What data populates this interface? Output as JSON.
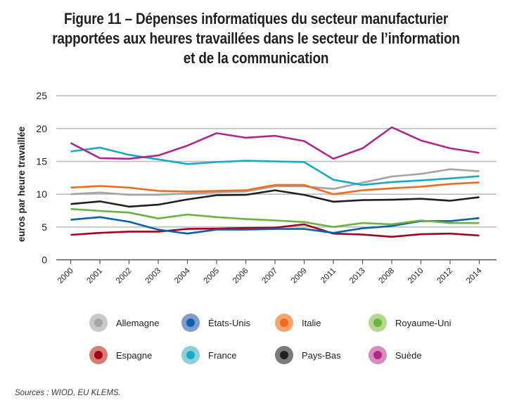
{
  "title_lines": [
    "Figure 11 – Dépenses informatiques du secteur manufacturier",
    "rapportées aux heures travaillées dans le secteur de l’information",
    "et de la communication"
  ],
  "source": "Sources : WIOD, EU KLEMS.",
  "chart_data": {
    "type": "line",
    "title": "Figure 11 – Dépenses informatiques du secteur manufacturier rapportées aux heures travaillées dans le secteur de l’information et de la communication",
    "xlabel": "",
    "ylabel": "euros par heure travaillée",
    "ylim": [
      0,
      25
    ],
    "yticks": [
      0,
      5,
      10,
      15,
      20,
      25
    ],
    "grid": true,
    "legend_position": "bottom",
    "categories": [
      "2000",
      "2001",
      "2002",
      "2003",
      "2004",
      "2005",
      "2006",
      "2007",
      "2009",
      "2011",
      "2013",
      "2008",
      "2010",
      "2012",
      "2014"
    ],
    "series": [
      {
        "name": "Allemagne",
        "color": "#a5a5a5",
        "light": "#c9cac8",
        "values": [
          10.0,
          10.25,
          9.9,
          9.9,
          10.1,
          10.3,
          10.4,
          11.2,
          11.2,
          10.8,
          11.75,
          12.7,
          13.1,
          13.8,
          13.5
        ]
      },
      {
        "name": "États-Unis",
        "color": "#0a62ad",
        "light": "#7f9ccb",
        "values": [
          6.1,
          6.5,
          5.8,
          4.6,
          4.0,
          4.6,
          4.6,
          4.7,
          4.7,
          4.1,
          4.8,
          5.15,
          5.9,
          5.9,
          6.35
        ]
      },
      {
        "name": "Italie",
        "color": "#f36a1d",
        "light": "#f9a46f",
        "values": [
          11.0,
          11.25,
          11.0,
          10.5,
          10.4,
          10.5,
          10.6,
          11.4,
          11.4,
          10.0,
          10.6,
          10.9,
          11.15,
          11.55,
          11.8
        ]
      },
      {
        "name": "Royaume-Uni",
        "color": "#6db33f",
        "light": "#b6d78f",
        "values": [
          7.75,
          7.45,
          7.2,
          6.3,
          6.9,
          6.5,
          6.2,
          6.0,
          5.75,
          5.0,
          5.6,
          5.4,
          6.0,
          5.6,
          5.6
        ]
      },
      {
        "name": "Espagne",
        "color": "#a6001f",
        "light": "#d27e70",
        "values": [
          3.8,
          4.1,
          4.3,
          4.3,
          4.7,
          4.75,
          4.85,
          4.9,
          5.4,
          4.0,
          3.85,
          3.5,
          3.9,
          4.0,
          3.7
        ]
      },
      {
        "name": "France",
        "color": "#12adc2",
        "light": "#8ccfd9",
        "values": [
          16.5,
          17.1,
          16.0,
          15.3,
          14.6,
          14.9,
          15.1,
          15.0,
          14.9,
          12.2,
          11.4,
          11.85,
          12.1,
          12.4,
          12.75
        ]
      },
      {
        "name": "Pays-Bas",
        "color": "#231f20",
        "light": "#7b7b7b",
        "values": [
          8.5,
          8.9,
          8.1,
          8.4,
          9.2,
          9.85,
          9.9,
          10.6,
          9.9,
          8.85,
          9.1,
          9.15,
          9.3,
          9.0,
          9.55
        ]
      },
      {
        "name": "Suède",
        "color": "#b1268b",
        "light": "#d58ebd",
        "values": [
          17.8,
          15.5,
          15.4,
          15.9,
          17.4,
          19.3,
          18.6,
          18.9,
          18.1,
          15.4,
          17.0,
          20.2,
          18.2,
          17.0,
          16.3
        ]
      }
    ]
  }
}
